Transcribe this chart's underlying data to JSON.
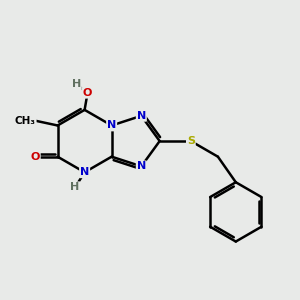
{
  "background_color": "#e8eae8",
  "atom_colors": {
    "C": "#000000",
    "N": "#0000cc",
    "O": "#cc0000",
    "S": "#aaaa00",
    "H": "#607060"
  },
  "bond_color": "#000000",
  "bond_width": 1.8,
  "figsize": [
    3.0,
    3.0
  ],
  "dpi": 100
}
